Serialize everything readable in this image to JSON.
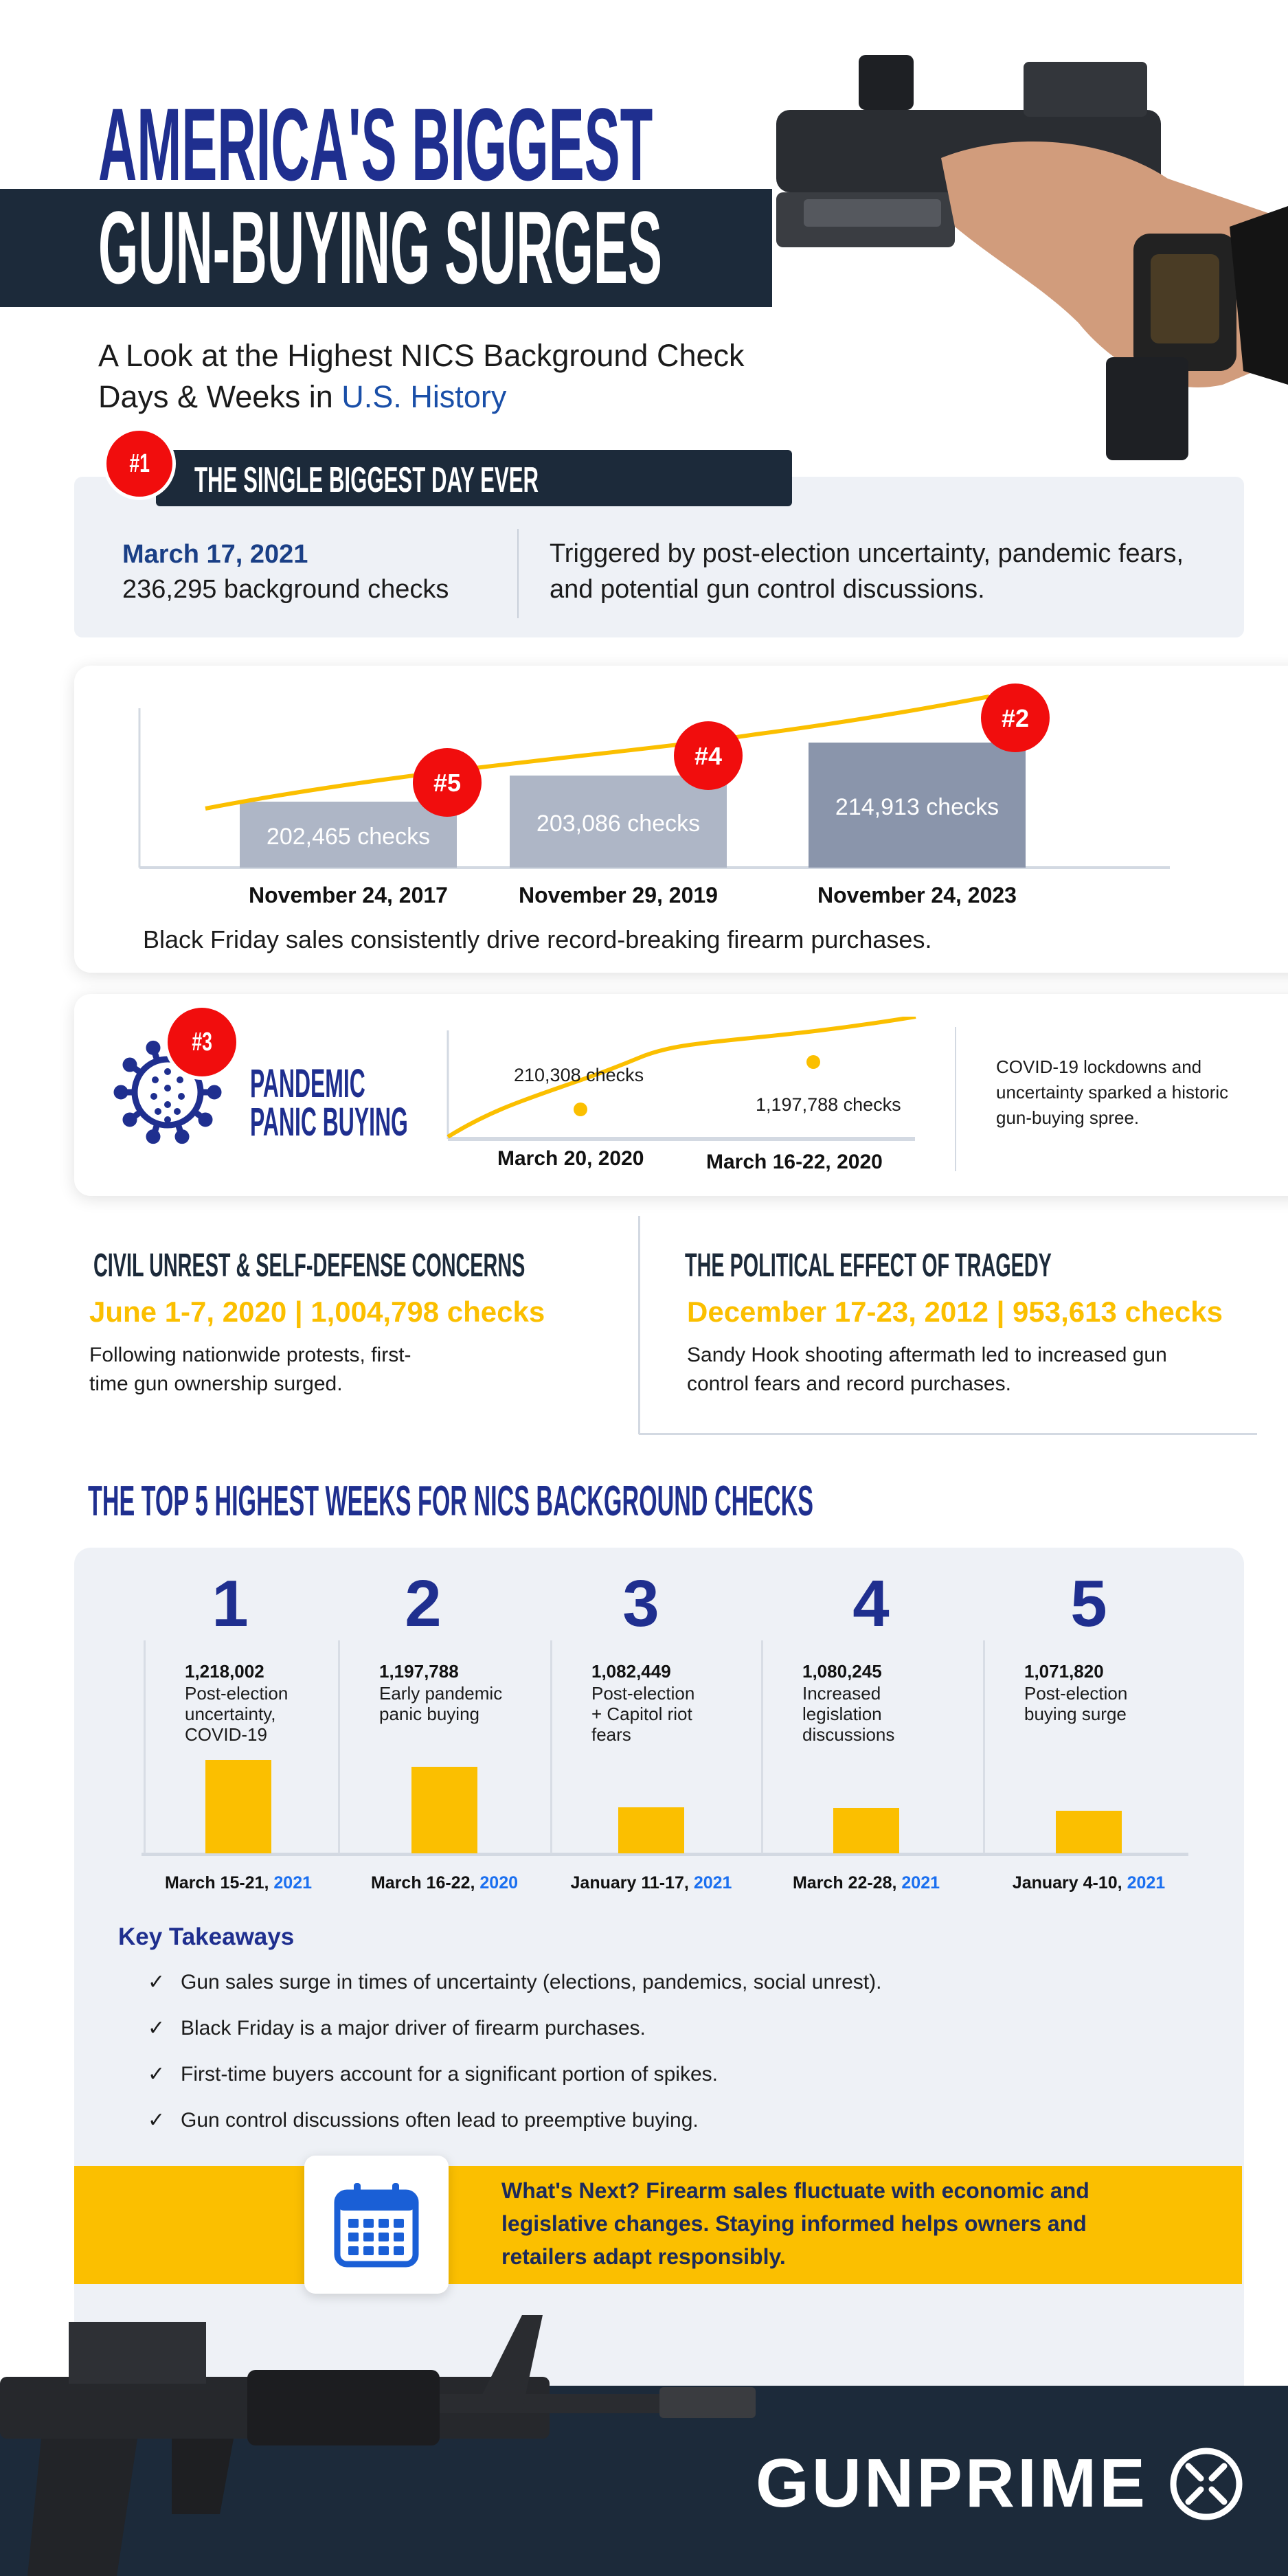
{
  "header": {
    "title_line1": "AMERICA'S BIGGEST",
    "title_line2": "GUN-BUYING SURGES",
    "subtitle_line1": "A Look at the Highest NICS Background Check",
    "subtitle_line2_prefix": "Days & Weeks in ",
    "subtitle_line2_highlight": "U.S. History"
  },
  "biggest_day": {
    "badge": "#1",
    "heading": "THE SINGLE BIGGEST DAY EVER",
    "date": "March 17, 2021",
    "checks": "236,295 background checks",
    "description": "Triggered by post-election uncertainty, pandemic fears, and potential gun control discussions."
  },
  "black_friday": {
    "caption": "Black Friday sales consistently drive record-breaking firearm purchases.",
    "bars": [
      {
        "date": "November 24, 2017",
        "label": "202,465  checks",
        "value": 202465,
        "badge": "#5"
      },
      {
        "date": "November 29, 2019",
        "label": "203,086 checks",
        "value": 203086,
        "badge": "#4"
      },
      {
        "date": "November 24, 2023",
        "label": "214,913 checks",
        "value": 214913,
        "badge": "#2"
      }
    ]
  },
  "pandemic": {
    "badge": "#3",
    "title_line1": "PANDEMIC",
    "title_line2": "PANIC BUYING",
    "point1_label": "210,308 checks",
    "point2_label": "1,197,788 checks",
    "date1": "March 20, 2020",
    "date2": "March 16-22, 2020",
    "description": "COVID-19 lockdowns and uncertainty sparked a historic gun-buying spree."
  },
  "civil_unrest": {
    "heading": "CIVIL UNREST & SELF-DEFENSE CONCERNS",
    "stat": "June 1-7, 2020 | 1,004,798 checks",
    "description_line1": "Following nationwide protests, first-",
    "description_line2": "time gun ownership surged."
  },
  "tragedy": {
    "heading": "THE POLITICAL EFFECT OF TRAGEDY",
    "stat": "December 17-23, 2012 | 953,613 checks",
    "description_line1": "Sandy Hook shooting aftermath led to increased gun",
    "description_line2": "control fears and record purchases."
  },
  "top5": {
    "heading": "THE TOP 5 HIGHEST WEEKS FOR NICS BACKGROUND CHECKS",
    "weeks": [
      {
        "rank": "1",
        "value_text": "1,218,002",
        "value": 1218002,
        "desc": [
          "Post-election",
          "uncertainty,",
          "COVID-19"
        ],
        "date": "March 15-21, ",
        "year": "2021"
      },
      {
        "rank": "2",
        "value_text": "1,197,788",
        "value": 1197788,
        "desc": [
          "Early pandemic",
          "panic buying"
        ],
        "date": "March 16-22, ",
        "year": "2020"
      },
      {
        "rank": "3",
        "value_text": "1,082,449",
        "value": 1082449,
        "desc": [
          "Post-election",
          "+ Capitol riot",
          "fears"
        ],
        "date": "January 11-17, ",
        "year": "2021"
      },
      {
        "rank": "4",
        "value_text": "1,080,245",
        "value": 1080245,
        "desc": [
          "Increased",
          "legislation",
          "discussions"
        ],
        "date": "March 22-28, ",
        "year": "2021"
      },
      {
        "rank": "5",
        "value_text": "1,071,820",
        "value": 1071820,
        "desc": [
          "Post-election",
          "buying surge"
        ],
        "date": "January 4-10, ",
        "year": "2021"
      }
    ]
  },
  "takeaways": {
    "heading": "Key Takeaways",
    "items": [
      "Gun sales surge in times of uncertainty (elections, pandemics, social unrest).",
      "Black Friday is a major driver of firearm purchases.",
      "First-time buyers account for a significant portion of spikes.",
      "Gun control discussions often lead to preemptive buying."
    ]
  },
  "whats_next": {
    "line1": "What's Next? Firearm sales fluctuate with economic and",
    "line2": "legislative changes. Staying informed helps owners and",
    "line3": "retailers adapt responsibly."
  },
  "footer": {
    "brand": "GUNPRIME"
  },
  "colors": {
    "navy": "#1f2f8f",
    "dark": "#1c2a3a",
    "yellow": "#fbbf00",
    "red": "#f10d0d",
    "blue_year": "#1a6ff0",
    "panel": "#eef1f6"
  }
}
